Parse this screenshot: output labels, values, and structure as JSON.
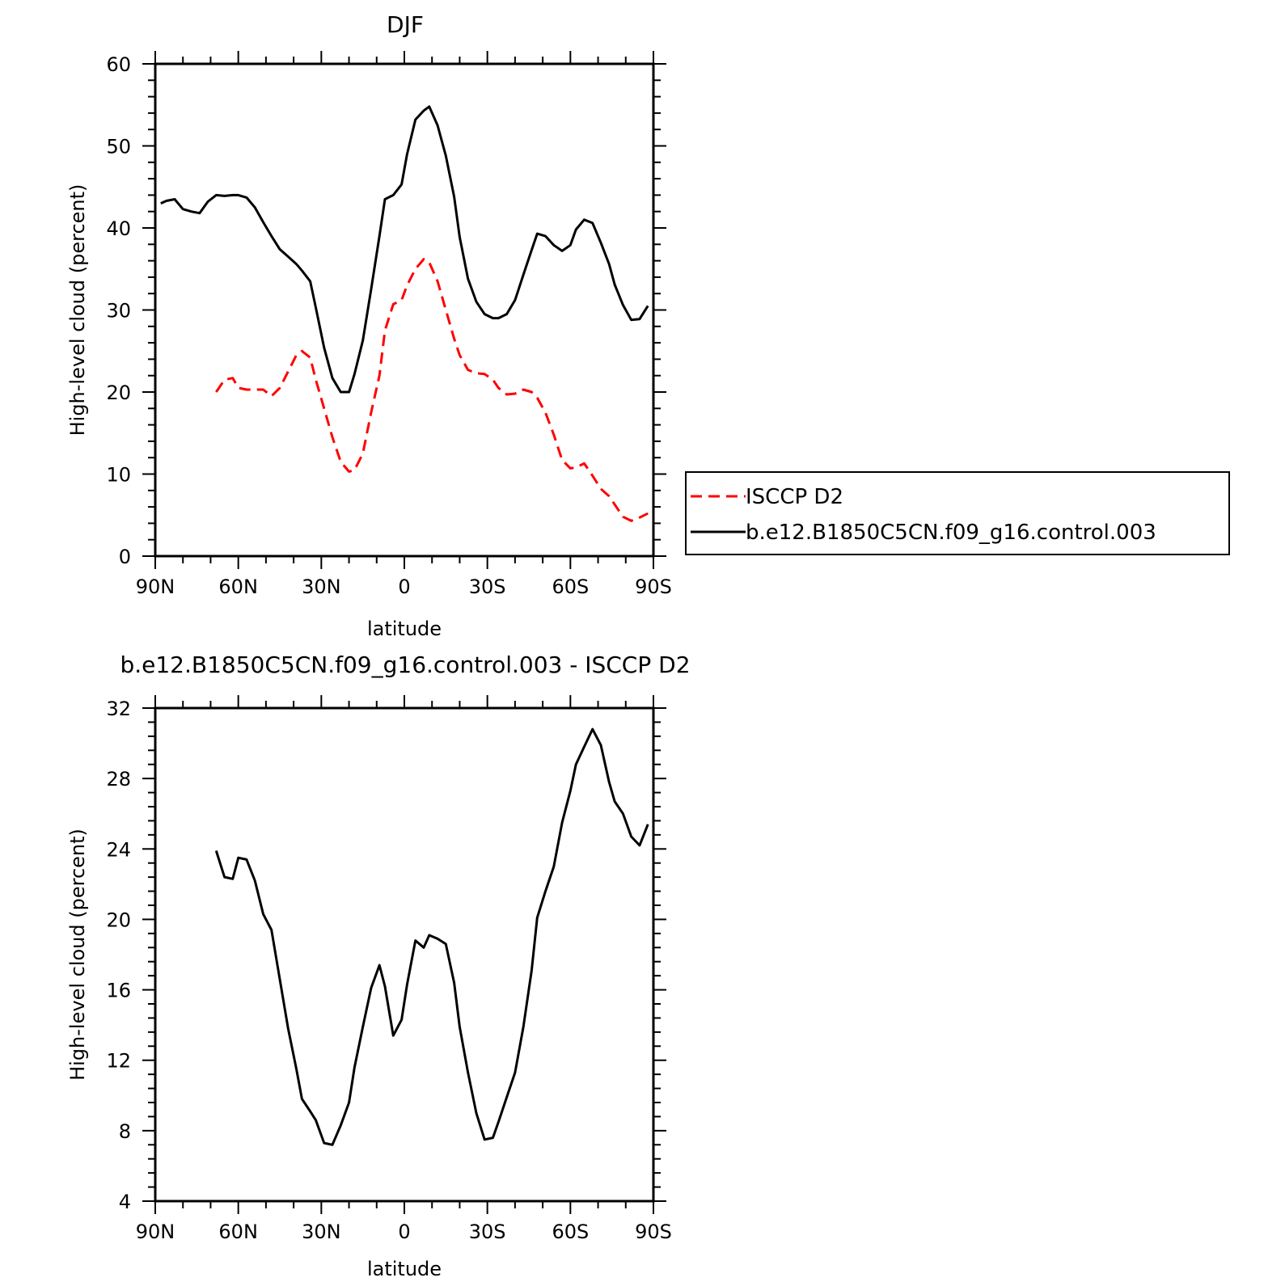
{
  "chart_data": [
    {
      "type": "line",
      "title": "DJF",
      "xlabel": "latitude",
      "ylabel": "High-level cloud (percent)",
      "xlim": [
        90,
        -90
      ],
      "ylim": [
        0,
        60
      ],
      "x_ticks": [
        90,
        60,
        30,
        0,
        -30,
        -60,
        -90
      ],
      "x_tick_labels": [
        "90N",
        "60N",
        "30N",
        "0",
        "30S",
        "60S",
        "90S"
      ],
      "y_ticks": [
        0,
        10,
        20,
        30,
        40,
        50,
        60
      ],
      "y_tick_labels": [
        "0",
        "10",
        "20",
        "30",
        "40",
        "50",
        "60"
      ],
      "legend_position": "right",
      "series": [
        {
          "name": "ISCCP D2",
          "color": "#ff0000",
          "dash": "dashed",
          "x": [
            68,
            65,
            62,
            60,
            57,
            54,
            51,
            48,
            45,
            42,
            39,
            37,
            34,
            32,
            29,
            26,
            23,
            20,
            18,
            15,
            12,
            9,
            7,
            4,
            1,
            -1,
            -4,
            -7,
            -9,
            -12,
            -15,
            -18,
            -20,
            -23,
            -26,
            -29,
            -32,
            -34,
            -37,
            -40,
            -43,
            -46,
            -48,
            -51,
            -54,
            -57,
            -60,
            -62,
            -65,
            -68,
            -71,
            -74,
            -76,
            -79,
            -82,
            -85,
            -88
          ],
          "y": [
            20,
            21.5,
            21.7,
            20.5,
            20.3,
            20.3,
            20.3,
            19.5,
            20.5,
            22.5,
            24.5,
            25,
            24.2,
            21.5,
            18,
            14.5,
            11.5,
            10.3,
            10.5,
            12.5,
            17.5,
            22,
            27.5,
            30.7,
            31.2,
            33,
            35,
            36.2,
            35.8,
            33.5,
            30,
            26.5,
            24.5,
            22.7,
            22.3,
            22.2,
            21.5,
            20.5,
            19.7,
            19.8,
            20.3,
            20,
            19.3,
            17.5,
            14.8,
            11.7,
            10.7,
            10.8,
            11.3,
            9.8,
            8.2,
            7.3,
            6.3,
            4.8,
            4.3,
            4.7,
            5.2
          ]
        },
        {
          "name": "b.e12.B1850C5CN.f09_g16.control.003",
          "color": "#000000",
          "dash": "solid",
          "x": [
            88,
            86,
            83,
            80,
            77,
            74,
            71,
            68,
            65,
            62,
            60,
            57,
            54,
            51,
            48,
            45,
            42,
            39,
            37,
            34,
            32,
            29,
            26,
            23,
            20,
            18,
            15,
            12,
            9,
            7,
            4,
            1,
            -1,
            -4,
            -7,
            -9,
            -12,
            -15,
            -18,
            -20,
            -23,
            -26,
            -29,
            -32,
            -34,
            -37,
            -40,
            -43,
            -46,
            -48,
            -51,
            -54,
            -57,
            -60,
            -62,
            -65,
            -68,
            -71,
            -74,
            -76,
            -79,
            -82,
            -85,
            -88
          ],
          "y": [
            43,
            43.3,
            43.5,
            42.3,
            42,
            41.8,
            43.2,
            44,
            43.9,
            44,
            44,
            43.7,
            42.5,
            40.7,
            39,
            37.4,
            36.5,
            35.6,
            34.8,
            33.5,
            30.3,
            25.4,
            21.7,
            20,
            20,
            22.2,
            26.3,
            32.5,
            39,
            43.5,
            44,
            45.3,
            49,
            53.2,
            54.3,
            54.8,
            52.5,
            48.8,
            43.8,
            38.9,
            33.8,
            31,
            29.5,
            29,
            29,
            29.5,
            31.2,
            34.3,
            37.3,
            39.3,
            39,
            37.9,
            37.2,
            37.9,
            39.8,
            41,
            40.6,
            38.2,
            35.6,
            33.1,
            30.6,
            28.8,
            28.9,
            30.5
          ]
        }
      ]
    },
    {
      "type": "line",
      "title": "b.e12.B1850C5CN.f09_g16.control.003 - ISCCP D2",
      "xlabel": "latitude",
      "ylabel": "High-level cloud (percent)",
      "xlim": [
        90,
        -90
      ],
      "ylim": [
        4,
        32
      ],
      "x_ticks": [
        90,
        60,
        30,
        0,
        -30,
        -60,
        -90
      ],
      "x_tick_labels": [
        "90N",
        "60N",
        "30N",
        "0",
        "30S",
        "60S",
        "90S"
      ],
      "y_ticks": [
        4,
        8,
        12,
        16,
        20,
        24,
        28,
        32
      ],
      "y_tick_labels": [
        "4",
        "8",
        "12",
        "16",
        "20",
        "24",
        "28",
        "32"
      ],
      "series": [
        {
          "color": "#000000",
          "dash": "solid",
          "x": [
            68,
            65,
            62,
            60,
            57,
            54,
            51,
            48,
            45,
            42,
            39,
            37,
            34,
            32,
            29,
            26,
            23,
            20,
            18,
            15,
            12,
            9,
            7,
            4,
            1,
            -1,
            -4,
            -7,
            -9,
            -12,
            -15,
            -18,
            -20,
            -23,
            -26,
            -29,
            -32,
            -34,
            -37,
            -40,
            -43,
            -46,
            -48,
            -51,
            -54,
            -57,
            -60,
            -62,
            -65,
            -68,
            -71,
            -74,
            -76,
            -79,
            -82,
            -85,
            -88
          ],
          "y": [
            23.9,
            22.4,
            22.3,
            23.5,
            23.4,
            22.2,
            20.3,
            19.4,
            16.6,
            13.8,
            11.5,
            9.8,
            9.1,
            8.6,
            7.3,
            7.2,
            8.3,
            9.6,
            11.6,
            13.9,
            16.1,
            17.4,
            16.2,
            13.4,
            14.3,
            16.3,
            18.8,
            18.4,
            19.1,
            18.9,
            18.6,
            16.4,
            13.9,
            11.3,
            9,
            7.5,
            7.6,
            8.5,
            9.9,
            11.3,
            13.9,
            17.1,
            20.1,
            21.6,
            23,
            25.5,
            27.3,
            28.8,
            29.8,
            30.8,
            29.9,
            27.8,
            26.7,
            26,
            24.7,
            24.2,
            25.4
          ]
        }
      ]
    }
  ]
}
